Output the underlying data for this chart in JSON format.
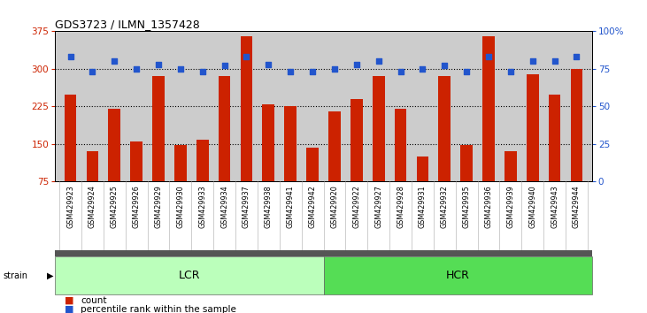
{
  "title": "GDS3723 / ILMN_1357428",
  "samples": [
    "GSM429923",
    "GSM429924",
    "GSM429925",
    "GSM429926",
    "GSM429929",
    "GSM429930",
    "GSM429933",
    "GSM429934",
    "GSM429937",
    "GSM429938",
    "GSM429941",
    "GSM429942",
    "GSM429920",
    "GSM429922",
    "GSM429927",
    "GSM429928",
    "GSM429931",
    "GSM429932",
    "GSM429935",
    "GSM429936",
    "GSM429939",
    "GSM429940",
    "GSM429943",
    "GSM429944"
  ],
  "counts": [
    248,
    135,
    220,
    155,
    285,
    148,
    158,
    285,
    365,
    230,
    225,
    143,
    215,
    240,
    285,
    220,
    125,
    285,
    148,
    365,
    135,
    290,
    248,
    300
  ],
  "percentile": [
    83,
    73,
    80,
    75,
    78,
    75,
    73,
    77,
    83,
    78,
    73,
    73,
    75,
    78,
    80,
    73,
    75,
    77,
    73,
    83,
    73,
    80,
    80,
    83
  ],
  "lcr_count": 12,
  "hcr_count": 12,
  "ylim_left": [
    75,
    375
  ],
  "ylim_right": [
    0,
    100
  ],
  "yticks_left": [
    75,
    150,
    225,
    300,
    375
  ],
  "yticks_right": [
    0,
    25,
    50,
    75,
    100
  ],
  "bar_color": "#cc2200",
  "dot_color": "#2255cc",
  "lcr_facecolor": "#bbffbb",
  "hcr_facecolor": "#55dd55",
  "plot_bg": "#cccccc",
  "sep_color": "#555555",
  "white": "#ffffff"
}
